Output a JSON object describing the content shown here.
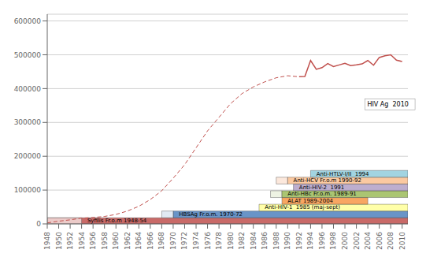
{
  "chart_data": {
    "type": "line",
    "xlim": [
      1948,
      2011
    ],
    "ylim": [
      0,
      620000
    ],
    "xticks": [
      1948,
      1950,
      1952,
      1954,
      1956,
      1958,
      1960,
      1962,
      1964,
      1966,
      1968,
      1970,
      1972,
      1974,
      1976,
      1978,
      1980,
      1982,
      1984,
      1986,
      1988,
      1990,
      1992,
      1994,
      1996,
      1998,
      2000,
      2002,
      2004,
      2006,
      2008,
      2010
    ],
    "yticks": [
      0,
      100000,
      200000,
      300000,
      400000,
      500000,
      600000
    ],
    "grid": true,
    "x": [
      1948,
      1950,
      1952,
      1954,
      1956,
      1958,
      1960,
      1962,
      1964,
      1966,
      1968,
      1970,
      1972,
      1974,
      1976,
      1978,
      1980,
      1982,
      1984,
      1986,
      1988,
      1990,
      1992,
      1993,
      1994,
      1995,
      1996,
      1997,
      1998,
      1999,
      2000,
      2001,
      2002,
      2003,
      2004,
      2005,
      2006,
      2007,
      2008,
      2009,
      2010
    ],
    "series": [
      {
        "color": "#c0504d",
        "line_style": "dashed",
        "values": [
          3000,
          8000,
          12000,
          17000,
          19000,
          22000,
          28000,
          38000,
          52000,
          72000,
          98000,
          135000,
          175000,
          225000,
          275000,
          315000,
          355000,
          385000,
          405000,
          420000,
          432000,
          438000,
          435000,
          null,
          null,
          null,
          null,
          null,
          null,
          null,
          null,
          null,
          null,
          null,
          null,
          null,
          null,
          null,
          null,
          null,
          null
        ]
      },
      {
        "color": "#c0504d",
        "line_style": "solid",
        "values": [
          null,
          null,
          null,
          null,
          null,
          null,
          null,
          null,
          null,
          null,
          null,
          null,
          null,
          null,
          null,
          null,
          null,
          null,
          null,
          null,
          null,
          null,
          435000,
          436000,
          483000,
          457000,
          462000,
          474000,
          465000,
          470000,
          475000,
          468000,
          470000,
          473000,
          483000,
          469000,
          492000,
          497000,
          500000,
          484000,
          480000
        ]
      }
    ],
    "bars": [
      {
        "start": 1948,
        "end": 2011,
        "bottom": 0,
        "height": 18000,
        "color": "#c0504d"
      },
      {
        "start": 1948,
        "end": 1954,
        "bottom": 0,
        "height": 18000,
        "color": "#f2dcdb"
      },
      {
        "start": 1970,
        "end": 2011,
        "bottom": 18000,
        "height": 20000,
        "color": "#4f81bd"
      },
      {
        "start": 1968,
        "end": 1970,
        "bottom": 18000,
        "height": 20000,
        "color": "#dce6f1"
      },
      {
        "start": 1985,
        "end": 2011,
        "bottom": 38000,
        "height": 20000,
        "color": "#ffff99"
      },
      {
        "start": 1989,
        "end": 2004,
        "bottom": 58000,
        "height": 20000,
        "color": "#f79646"
      },
      {
        "start": 1987,
        "end": 1989,
        "bottom": 78000,
        "height": 20000,
        "color": "#ebf1de"
      },
      {
        "start": 1989,
        "end": 2011,
        "bottom": 78000,
        "height": 20000,
        "color": "#9bbb59"
      },
      {
        "start": 1991,
        "end": 2011,
        "bottom": 98000,
        "height": 20000,
        "color": "#b1a0c7"
      },
      {
        "start": 1988,
        "end": 1990,
        "bottom": 118000,
        "height": 20000,
        "color": "#fce4d6"
      },
      {
        "start": 1990,
        "end": 2011,
        "bottom": 118000,
        "height": 20000,
        "color": "#fac090"
      },
      {
        "start": 1994,
        "end": 2011,
        "bottom": 138000,
        "height": 20000,
        "color": "#92cddc"
      }
    ],
    "bar_labels": [
      {
        "text": "Syfilis Fr.o.m 1948-54",
        "x": 1955,
        "y": 9000
      },
      {
        "text": "HBSAg Fr.o.m. 1970-72",
        "x": 1971,
        "y": 28000
      },
      {
        "text": "Anti-HIV-1  1985 (maj-sept)",
        "x": 1986,
        "y": 48000
      },
      {
        "text": "ALAT 1989-2004",
        "x": 1990,
        "y": 68000
      },
      {
        "text": "Anti-HBc Fr.o.m. 1989-91",
        "x": 1990,
        "y": 88000
      },
      {
        "text": "Anti-HIV-2  1991",
        "x": 1992,
        "y": 108000
      },
      {
        "text": "Anti-HCV Fr.o.m 1990-92",
        "x": 1991,
        "y": 128000
      },
      {
        "text": "Anti-HTLV-I/II  1994",
        "x": 1995,
        "y": 148000
      }
    ],
    "annotations": [
      {
        "text": "HIV Ag  2010",
        "x": 2003.5,
        "y": 353000
      }
    ]
  }
}
